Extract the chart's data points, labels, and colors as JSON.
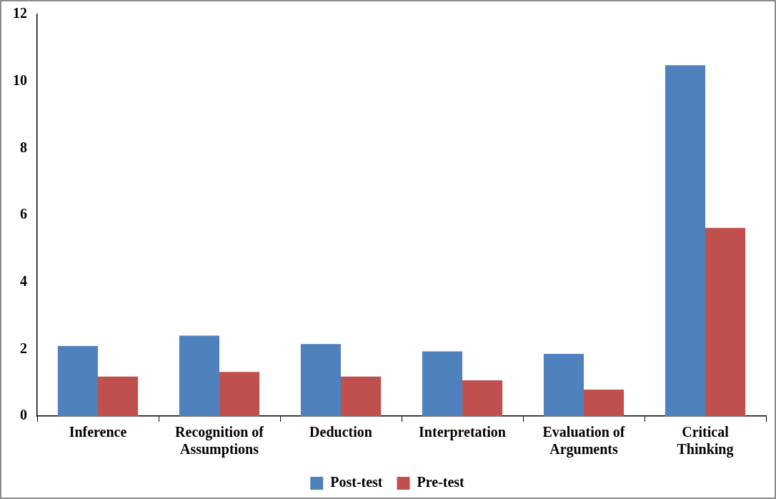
{
  "chart_data": {
    "type": "bar",
    "categories": [
      "Inference",
      "Recognition of Assumptions",
      "Deduction",
      "Interpretation",
      "Evaluation of Arguments",
      "Critical Thinking"
    ],
    "series": [
      {
        "name": "Post-test",
        "color": "#4f81bd",
        "values": [
          2.09,
          2.4,
          2.15,
          1.93,
          1.86,
          10.48
        ]
      },
      {
        "name": "Pre-test",
        "color": "#c0504d",
        "values": [
          1.18,
          1.32,
          1.18,
          1.07,
          0.79,
          5.62
        ]
      }
    ],
    "ylim": [
      0,
      12
    ],
    "yticks": [
      0,
      2,
      4,
      6,
      8,
      10,
      12
    ],
    "grid": false,
    "legend": "bottom"
  }
}
